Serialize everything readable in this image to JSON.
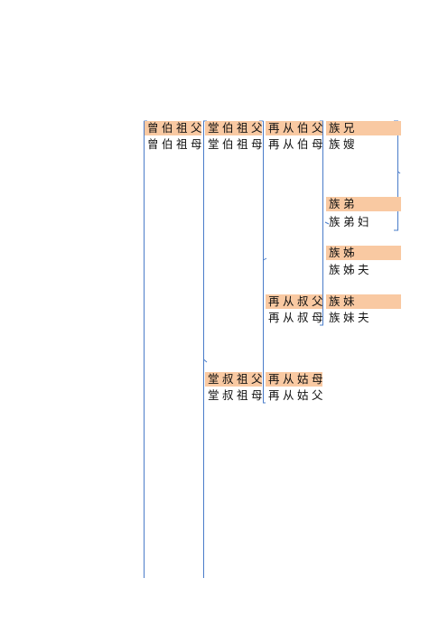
{
  "nodes": [
    {
      "label": "曾伯祖父"
    },
    {
      "label": "曾伯祖母"
    },
    {
      "label": "堂伯祖父"
    },
    {
      "label": "堂伯祖母"
    },
    {
      "label": "再从伯父"
    },
    {
      "label": "再从伯母"
    },
    {
      "label": "族兄"
    },
    {
      "label": "族嫂"
    },
    {
      "label": "族弟"
    },
    {
      "label": "族弟妇"
    },
    {
      "label": "族姊"
    },
    {
      "label": "族姊夫"
    },
    {
      "label": "再从叔父"
    },
    {
      "label": "再从叔母"
    },
    {
      "label": "族妹"
    },
    {
      "label": "族妹夫"
    },
    {
      "label": "堂叔祖父"
    },
    {
      "label": "堂叔祖母"
    },
    {
      "label": "再从姑母"
    },
    {
      "label": "再从姑父"
    }
  ]
}
